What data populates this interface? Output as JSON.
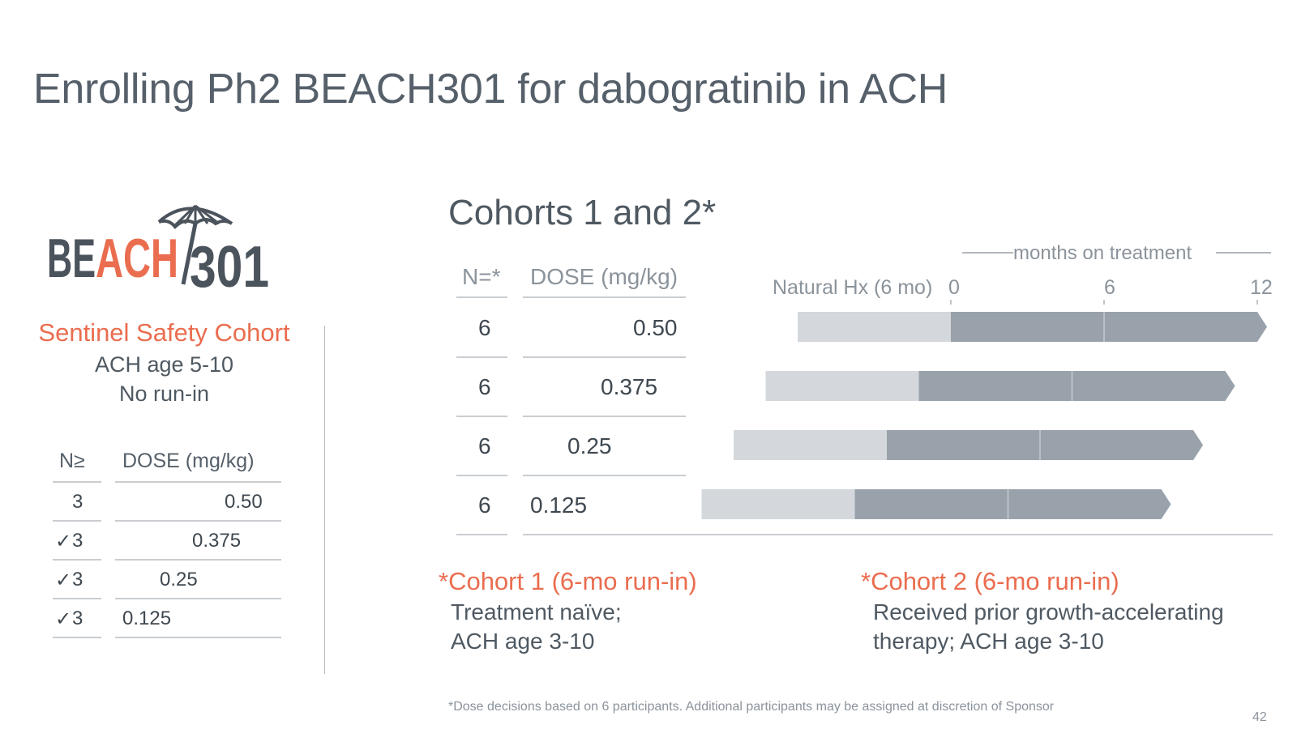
{
  "slide": {
    "title": "Enrolling Ph2 BEACH301 for dabogratinib in ACH",
    "page_number": "42",
    "footnote": "*Dose decisions based on 6 participants. Additional participants may be assigned at discretion of Sponsor"
  },
  "logo": {
    "text_dark_1": "BE",
    "text_orange": "ACH",
    "text_dark_2": "301",
    "icon": "umbrella-icon",
    "colors": {
      "dark": "#4b535c",
      "orange": "#ea6d4f"
    }
  },
  "sentinel": {
    "title": "Sentinel Safety Cohort",
    "line1": "ACH age 5-10",
    "line2": "No run-in",
    "headers": {
      "n": "N≥",
      "dose": "DOSE (mg/kg)"
    },
    "rows": [
      {
        "n": "3",
        "checked": false,
        "dose": "0.50"
      },
      {
        "n": "3",
        "checked": true,
        "dose": "0.375"
      },
      {
        "n": "3",
        "checked": true,
        "dose": "0.25"
      },
      {
        "n": "3",
        "checked": true,
        "dose": "0.125"
      }
    ],
    "check_glyph": "✓"
  },
  "cohorts": {
    "title": "Cohorts 1 and 2*",
    "headers": {
      "n": "N=*",
      "dose": "DOSE (mg/kg)"
    },
    "rows": [
      {
        "n": "6",
        "dose": "0.50"
      },
      {
        "n": "6",
        "dose": "0.375"
      },
      {
        "n": "6",
        "dose": "0.25"
      },
      {
        "n": "6",
        "dose": "0.125"
      }
    ],
    "axis": {
      "label": "months on treatment",
      "natural_label": "Natural Hx (6 mo)",
      "ticks": [
        "0",
        "6",
        "12"
      ]
    },
    "timeline": {
      "natural_hx_months": 6,
      "treatment_months": [
        12,
        12,
        12,
        12
      ],
      "colors": {
        "natural": "#d4d8dc",
        "treatment": "#99a2ab",
        "divider": "#c4c9ce",
        "axis": "#b0b5ba"
      }
    },
    "cohort1": {
      "head": "*Cohort 1 (6-mo run-in)",
      "line1": "Treatment naïve;",
      "line2": "ACH age 3-10"
    },
    "cohort2": {
      "head": "*Cohort 2 (6-mo run-in)",
      "line1": "Received prior growth-accelerating",
      "line2": "therapy; ACH age 3-10"
    }
  }
}
